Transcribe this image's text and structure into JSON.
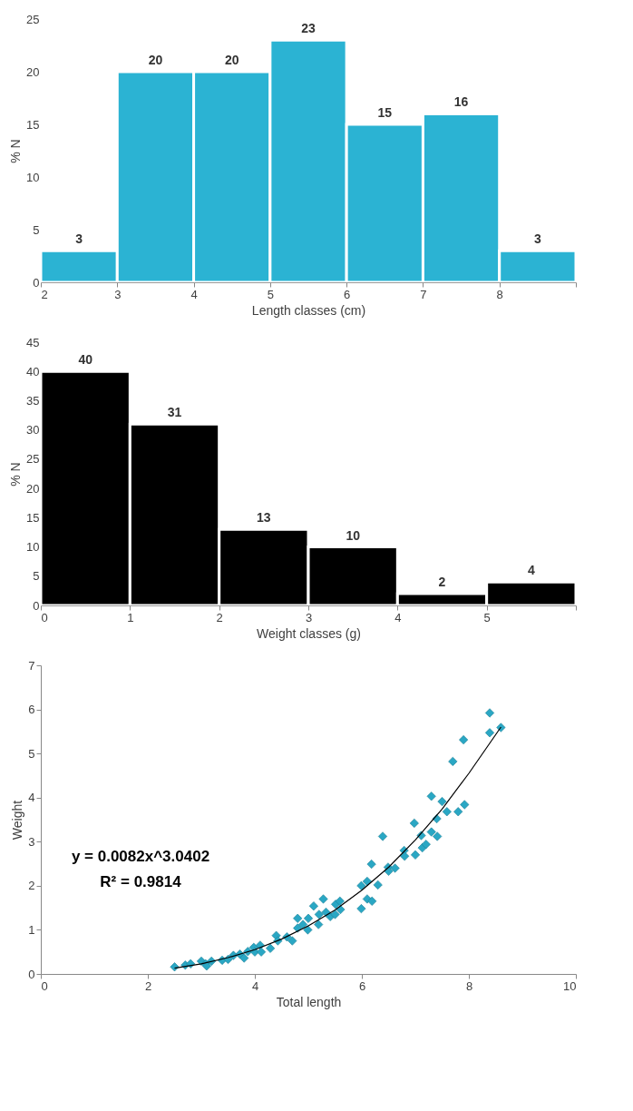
{
  "chart_data": [
    {
      "type": "histogram",
      "bins": [
        2,
        3,
        4,
        5,
        6,
        7,
        8,
        9
      ],
      "values": [
        3,
        20,
        20,
        23,
        15,
        16,
        3
      ],
      "color": "#2bb3d3",
      "data_labels": true,
      "xlabel": "Length classes (cm)",
      "ylabel": "% N",
      "xlim": [
        2,
        9
      ],
      "xticks": [
        2,
        3,
        4,
        5,
        6,
        7,
        8,
        {
          "value": 9,
          "label": null
        }
      ],
      "ylim": [
        0,
        25
      ],
      "yticks": [
        0,
        5,
        10,
        15,
        20,
        25
      ]
    },
    {
      "type": "histogram",
      "bins": [
        0,
        1,
        2,
        3,
        4,
        5,
        6
      ],
      "values": [
        40,
        31,
        13,
        10,
        2,
        4
      ],
      "color": "#000000",
      "data_labels": true,
      "xlabel": "Weight classes (g)",
      "ylabel": "% N",
      "xlim": [
        0,
        6
      ],
      "xticks": [
        0,
        1,
        2,
        3,
        4,
        5,
        {
          "value": 6,
          "label": null
        }
      ],
      "ylim": [
        0,
        45
      ],
      "yticks": [
        0,
        5,
        10,
        15,
        20,
        25,
        30,
        35,
        40,
        45
      ]
    },
    {
      "type": "scatter",
      "xlabel": "Total length",
      "ylabel": "Weight",
      "xlim": [
        0,
        10
      ],
      "xticks": [
        0,
        2,
        4,
        6,
        8,
        10
      ],
      "ylim": [
        0,
        7
      ],
      "yticks": [
        0,
        1,
        2,
        3,
        4,
        5,
        6,
        7
      ],
      "marker": "diamond",
      "annotations": [
        "y = 0.0082x^3.0402",
        "R² = 0.9814"
      ],
      "series": [
        {
          "type": "scatter",
          "color": "#2aa7c4",
          "x": [
            2.5,
            2.7,
            2.8,
            3.0,
            3.08,
            3.1,
            3.19,
            3.39,
            3.5,
            3.6,
            3.72,
            3.8,
            3.87,
            3.98,
            4.0,
            4.1,
            4.12,
            4.29,
            4.4,
            4.43,
            4.6,
            4.7,
            4.8,
            4.8,
            4.9,
            4.99,
            5.0,
            5.1,
            5.19,
            5.2,
            5.28,
            5.33,
            5.41,
            5.5,
            5.51,
            5.59,
            5.6,
            5.99,
            5.99,
            6.1,
            6.1,
            6.18,
            6.19,
            6.3,
            6.39,
            6.49,
            6.5,
            6.62,
            6.79,
            6.8,
            6.98,
            7.0,
            7.11,
            7.13,
            7.2,
            7.3,
            7.3,
            7.4,
            7.41,
            7.5,
            7.59,
            7.7,
            7.8,
            7.9,
            7.92,
            8.39,
            8.39,
            8.6
          ],
          "values": [
            0.16,
            0.2,
            0.23,
            0.29,
            0.23,
            0.18,
            0.29,
            0.31,
            0.33,
            0.42,
            0.45,
            0.36,
            0.51,
            0.6,
            0.5,
            0.65,
            0.5,
            0.58,
            0.87,
            0.75,
            0.84,
            0.75,
            1.26,
            1.04,
            1.12,
            1.0,
            1.26,
            1.54,
            1.12,
            1.35,
            1.7,
            1.4,
            1.3,
            1.35,
            1.58,
            1.65,
            1.46,
            1.48,
            2.0,
            2.1,
            1.7,
            2.49,
            1.65,
            2.02,
            3.12,
            2.42,
            2.33,
            2.4,
            2.8,
            2.67,
            3.42,
            2.7,
            3.14,
            2.86,
            2.94,
            4.03,
            3.22,
            3.52,
            3.12,
            3.91,
            3.68,
            4.82,
            3.68,
            5.31,
            3.84,
            5.92,
            5.47,
            5.59
          ]
        },
        {
          "type": "line",
          "color": "#000000",
          "marker": "none",
          "x": [
            2.5,
            3,
            3.5,
            4,
            4.5,
            5,
            5.5,
            6,
            6.5,
            7,
            7.5,
            8,
            8.6
          ],
          "values": [
            0.13,
            0.23,
            0.37,
            0.55,
            0.79,
            1.09,
            1.45,
            1.9,
            2.42,
            3.04,
            3.74,
            4.55,
            5.6
          ]
        }
      ]
    }
  ]
}
